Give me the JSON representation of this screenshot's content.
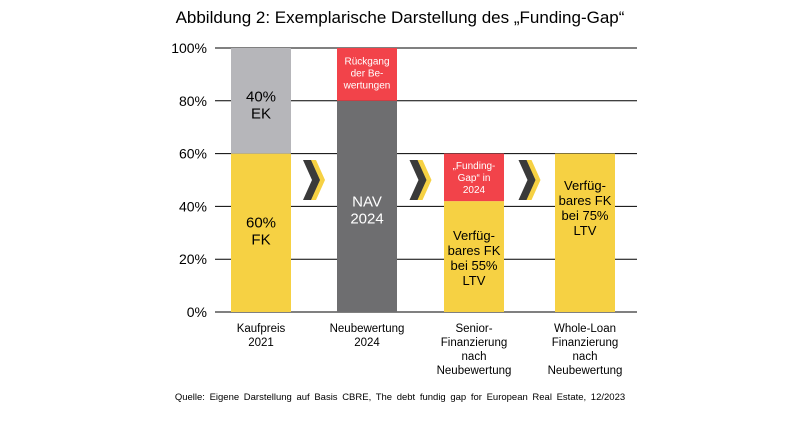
{
  "title": "Abbildung 2: Exemplarische Darstellung des „Funding-Gap“",
  "source": "Quelle:  Eigene Darstellung  auf Basis CBRE, The debt fundig gap for European Real Estate, 12/2023",
  "colors": {
    "yellow": "#f6d143",
    "grey_light": "#b6b6ba",
    "grey_dark": "#6e6e70",
    "red": "#f2434a",
    "gridline": "#000000",
    "arrow_dark": "#3a3a3a",
    "arrow_light": "#f6d143"
  },
  "chart_data": {
    "type": "bar",
    "stacked": true,
    "title": "Abbildung 2: Exemplarische Darstellung des „Funding-Gap“",
    "xlabel": "",
    "ylabel": "",
    "ylim": [
      0,
      100
    ],
    "yticks": [
      0,
      20,
      40,
      60,
      80,
      100
    ],
    "ytick_labels": [
      "0%",
      "20%",
      "40%",
      "60%",
      "80%",
      "100%"
    ],
    "grid": true,
    "categories": [
      [
        "Kaufpreis",
        "2021"
      ],
      [
        "Neubewertung",
        "2024"
      ],
      [
        "Senior-",
        "Finanzierung",
        "nach",
        "Neubewertung"
      ],
      [
        "Whole-Loan",
        "Finanzierung",
        "nach",
        "Neubewertung"
      ]
    ],
    "bars": [
      {
        "segments": [
          {
            "name": "FK",
            "from": 0,
            "to": 60,
            "color": "yellow",
            "label": [
              "60%",
              "FK"
            ],
            "size": "large",
            "dy": 0.8
          },
          {
            "name": "EK",
            "from": 60,
            "to": 100,
            "color": "grey_light",
            "label": [
              "40%",
              "EK"
            ],
            "size": "large",
            "dy": -1.5
          }
        ]
      },
      {
        "segments": [
          {
            "name": "NAV",
            "from": 0,
            "to": 80,
            "color": "grey_dark",
            "label": [
              "NAV",
              "2024"
            ],
            "size": "large",
            "text_color": "#ffffff",
            "dy": -1.2
          },
          {
            "name": "Rückgang",
            "from": 80,
            "to": 100,
            "color": "red",
            "label": [
              "Rückgang",
              "der Be-",
              "wertungen"
            ],
            "size": "small",
            "text_color": "#ffffff",
            "dy": 0.5
          }
        ]
      },
      {
        "segments": [
          {
            "name": "FK 55%",
            "from": 0,
            "to": 42,
            "color": "yellow",
            "label": [
              "Verfüg-",
              "bares FK",
              "bei 55%",
              "LTV"
            ],
            "size": "medium",
            "dy": -0.5
          },
          {
            "name": "Funding-Gap",
            "from": 42,
            "to": 60,
            "color": "red",
            "label": [
              "„Funding-",
              "Gap“ in",
              "2024"
            ],
            "size": "small",
            "text_color": "#ffffff",
            "dy": 0
          }
        ]
      },
      {
        "segments": [
          {
            "name": "FK 75%",
            "from": 0,
            "to": 60,
            "color": "yellow",
            "label": [
              "Verfüg-",
              "bares FK",
              "bei 75%",
              "LTV"
            ],
            "size": "medium",
            "dy": 9.5
          }
        ]
      }
    ],
    "arrows": [
      {
        "between": [
          0,
          1
        ],
        "level": 50
      },
      {
        "between": [
          1,
          2
        ],
        "level": 50
      },
      {
        "between": [
          2,
          3
        ],
        "level": 50
      }
    ]
  }
}
